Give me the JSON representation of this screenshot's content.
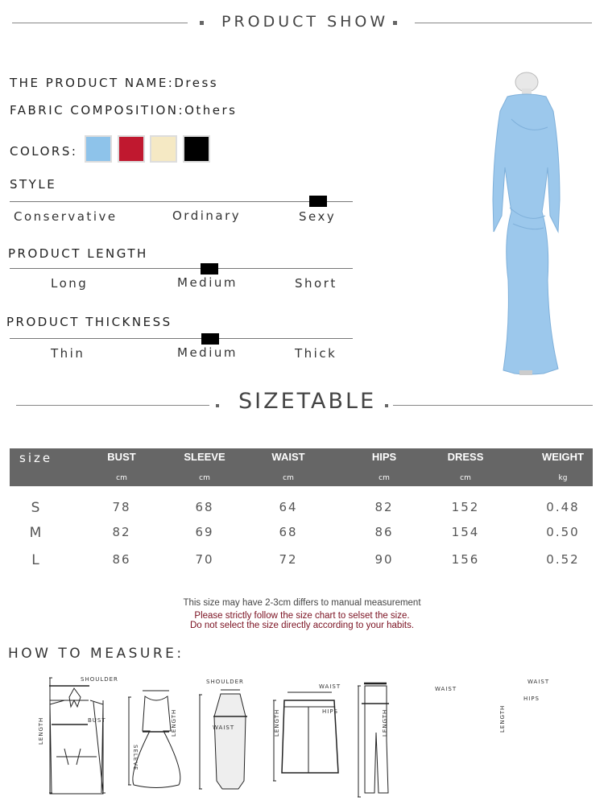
{
  "header": {
    "title": "PRODUCT SHOW"
  },
  "product": {
    "name_label": "THE PRODUCT NAME:",
    "name": "Dress",
    "fabric_label": "FABRIC COMPOSITION:",
    "fabric": "Others",
    "colors_label": "COLORS:",
    "colors": [
      "#8ec3ea",
      "#c0182f",
      "#f5e9c4",
      "#000000"
    ]
  },
  "style": {
    "label": "STYLE",
    "options": [
      "Conservative",
      "Ordinary",
      "Sexy"
    ],
    "selected": "Sexy"
  },
  "length": {
    "label": "PRODUCT LENGTH",
    "options": [
      "Long",
      "Medium",
      "Short"
    ],
    "selected": "Medium"
  },
  "thickness": {
    "label": "PRODUCT THICKNESS",
    "options": [
      "Thin",
      "Medium",
      "Thick"
    ],
    "selected": "Medium"
  },
  "sizetable": {
    "title": "SIZETABLE",
    "size_header": "size",
    "columns": [
      {
        "name": "BUST",
        "unit": "cm"
      },
      {
        "name": "SLEEVE",
        "unit": "cm"
      },
      {
        "name": "WAIST",
        "unit": "cm"
      },
      {
        "name": "HIPS",
        "unit": "cm"
      },
      {
        "name": "DRESS",
        "unit": "cm"
      },
      {
        "name": "WEIGHT",
        "unit": "kg"
      }
    ],
    "rows": [
      {
        "size": "S",
        "values": [
          "78",
          "68",
          "64",
          "82",
          "152",
          "0.48"
        ]
      },
      {
        "size": "M",
        "values": [
          "82",
          "69",
          "68",
          "86",
          "154",
          "0.50"
        ]
      },
      {
        "size": "L",
        "values": [
          "86",
          "70",
          "72",
          "90",
          "156",
          "0.52"
        ]
      }
    ],
    "note": "This size may have 2-3cm differs to manual measurement",
    "warning1": "Please strictly follow the size chart to selset the size.",
    "warning2": "Do not select the size directly according to your habits."
  },
  "measure": {
    "title": "HOW TO MEASURE:",
    "labels": {
      "shoulder": "SHOULDER",
      "bust": "BUST",
      "waist": "WAIST",
      "hips": "HIPS",
      "length": "LENGTH",
      "sleeve": "SELEVE"
    }
  }
}
